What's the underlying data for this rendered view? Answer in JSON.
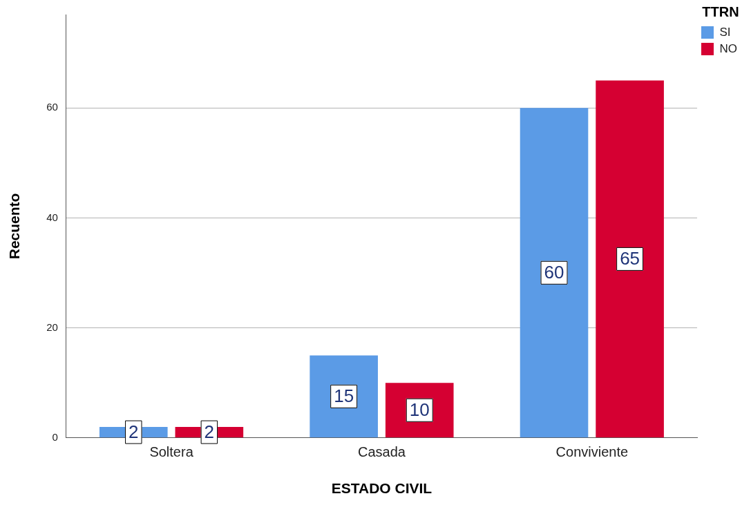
{
  "chart_data": {
    "type": "bar",
    "xlabel": "ESTADO CIVIL",
    "ylabel": "Recuento",
    "legend_title": "TTRN",
    "categories": [
      "Soltera",
      "Casada",
      "Conviviente"
    ],
    "series": [
      {
        "name": "SI",
        "color": "#5b9be6",
        "values": [
          2,
          15,
          60
        ]
      },
      {
        "name": "NO",
        "color": "#d50032",
        "values": [
          2,
          10,
          65
        ]
      }
    ],
    "ylim": [
      0,
      77
    ],
    "yticks": [
      0,
      20,
      40,
      60
    ],
    "grid": "y",
    "legend": "top right",
    "data_labels": true
  }
}
